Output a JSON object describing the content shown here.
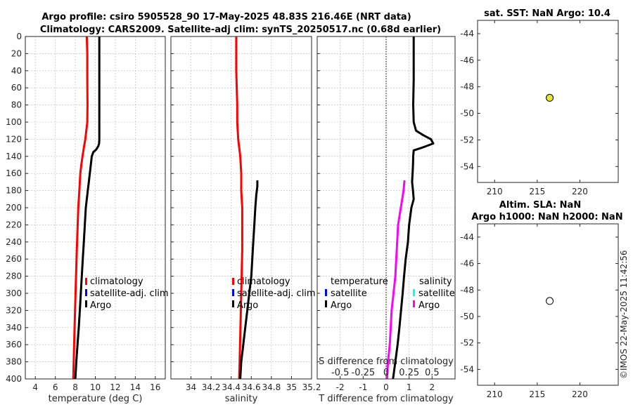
{
  "title_line1": "Argo profile: csiro 5905528_90 17-May-2025 48.83S 216.46E (NRT data)",
  "title_line2": "Climatology: CARS2009. Satellite-adj clim: synTS_20250517.nc (0.68d earlier)",
  "copyright": "©IMOS 22-May-2025 11:42:56",
  "colors": {
    "climatology": "#ff0000",
    "satellite": "#0000ff",
    "argo": "#000000",
    "sat_salinity": "#00ffff",
    "argo_diff": "#ff00ff",
    "sst_marker": "#e6e62e"
  },
  "depth_ticks": [
    0,
    20,
    40,
    60,
    80,
    100,
    120,
    140,
    160,
    180,
    200,
    220,
    240,
    260,
    280,
    300,
    320,
    340,
    360,
    380,
    400
  ],
  "chart_data": [
    {
      "id": "temperature",
      "type": "line",
      "xlabel": "temperature (deg C)",
      "xlim": [
        3,
        17
      ],
      "ylim": [
        0,
        400
      ],
      "xticks": [
        4,
        6,
        8,
        10,
        12,
        14,
        16
      ],
      "xtick_labels": [
        "4",
        "6",
        "8",
        "10",
        "12",
        "14",
        "16"
      ],
      "legend": [
        "climatology",
        "satellite-adj. clim",
        "Argo"
      ],
      "series": [
        {
          "name": "climatology",
          "color": "#ff0000",
          "depth": [
            0,
            20,
            50,
            80,
            100,
            110,
            120,
            130,
            140,
            150,
            160,
            180,
            200,
            250,
            300,
            350,
            400
          ],
          "values": [
            9.15,
            9.2,
            9.2,
            9.22,
            9.2,
            9.1,
            9.0,
            8.85,
            8.72,
            8.6,
            8.5,
            8.4,
            8.3,
            8.15,
            8.02,
            7.9,
            7.8
          ]
        },
        {
          "name": "Argo",
          "color": "#000000",
          "depth": [
            0,
            20,
            50,
            80,
            100,
            120,
            125,
            128,
            132,
            135,
            140,
            150,
            160,
            170,
            180,
            190,
            200,
            220,
            240,
            260,
            280,
            300,
            320,
            340,
            360,
            380,
            400
          ],
          "values": [
            10.4,
            10.4,
            10.4,
            10.4,
            10.4,
            10.4,
            10.38,
            10.3,
            10.1,
            9.8,
            9.65,
            9.55,
            9.45,
            9.35,
            9.25,
            9.15,
            9.05,
            8.95,
            8.85,
            8.75,
            8.65,
            8.55,
            8.45,
            8.35,
            8.22,
            8.1,
            8.0
          ]
        }
      ]
    },
    {
      "id": "salinity",
      "type": "line",
      "xlabel": "salinity",
      "xlim": [
        33.8,
        35.2
      ],
      "ylim": [
        0,
        400
      ],
      "xticks": [
        34,
        34.2,
        34.4,
        34.6,
        34.8,
        35,
        35.2
      ],
      "xtick_labels": [
        "34",
        "34.2",
        "34.4",
        "34.6",
        "34.8",
        "35",
        "35.2"
      ],
      "legend": [
        "climatology",
        "satellite-adj. clim",
        "Argo"
      ],
      "series": [
        {
          "name": "climatology",
          "color": "#ff0000",
          "depth": [
            0,
            40,
            80,
            100,
            120,
            140,
            160,
            180,
            200,
            250,
            300,
            350,
            400
          ],
          "values": [
            34.45,
            34.45,
            34.46,
            34.46,
            34.47,
            34.49,
            34.5,
            34.5,
            34.51,
            34.51,
            34.5,
            34.49,
            34.48
          ]
        },
        {
          "name": "Argo",
          "color": "#000000",
          "depth": [
            168,
            175,
            185,
            200,
            220,
            240,
            260,
            280,
            300,
            320,
            340,
            360,
            380,
            400
          ],
          "values": [
            34.66,
            34.66,
            34.65,
            34.64,
            34.63,
            34.62,
            34.61,
            34.6,
            34.58,
            34.56,
            34.54,
            34.52,
            34.5,
            34.49
          ]
        }
      ]
    },
    {
      "id": "difference",
      "type": "line",
      "xlabel": "T difference from climatology",
      "top_label": "S difference from climatology",
      "xlim": [
        -3,
        3
      ],
      "ylim": [
        0,
        400
      ],
      "xticks": [
        -2,
        -1,
        0,
        1,
        2
      ],
      "xtick_labels": [
        "-2",
        "-1",
        "0",
        "1",
        "2"
      ],
      "top_ticks": [
        -0.5,
        -0.25,
        0,
        0.25,
        0.5
      ],
      "top_tick_labels": [
        "-0.5",
        "-0.25",
        "0",
        "0.25",
        "0.5"
      ],
      "legend_left_title": "temperature",
      "legend_right_title": "salinity",
      "legend_left": [
        "satellite",
        "Argo"
      ],
      "legend_right": [
        "satellite",
        "Argo"
      ],
      "series": [
        {
          "name": "Argo T diff",
          "color": "#000000",
          "depth": [
            0,
            20,
            50,
            80,
            100,
            110,
            115,
            120,
            125,
            130,
            133,
            140,
            150,
            160,
            170,
            180,
            190,
            200,
            220,
            240,
            260,
            280,
            300,
            320,
            340,
            360,
            380,
            400
          ],
          "values": [
            1.2,
            1.2,
            1.2,
            1.18,
            1.2,
            1.3,
            1.6,
            1.95,
            2.05,
            1.55,
            1.2,
            1.18,
            1.17,
            1.15,
            1.13,
            1.17,
            1.2,
            1.1,
            1.0,
            0.95,
            0.85,
            0.78,
            0.72,
            0.65,
            0.58,
            0.5,
            0.4,
            0.3
          ]
        },
        {
          "name": "Argo S diff",
          "color": "#ff00ff",
          "depth": [
            168,
            180,
            200,
            220,
            240,
            260,
            280,
            300,
            320,
            340,
            360,
            380,
            400
          ],
          "values": [
            0.2,
            0.19,
            0.16,
            0.13,
            0.12,
            0.11,
            0.1,
            0.08,
            0.06,
            0.05,
            0.04,
            0.02,
            0.01
          ]
        }
      ]
    },
    {
      "id": "sst_map",
      "type": "scatter",
      "title": "sat. SST: NaN Argo: 10.4",
      "xlim": [
        208,
        224.5
      ],
      "ylim": [
        -55.2,
        -43
      ],
      "xticks": [
        210,
        215,
        220
      ],
      "yticks": [
        -44,
        -46,
        -48,
        -50,
        -52,
        -54
      ],
      "points": [
        {
          "x": 216.46,
          "y": -48.83,
          "fill": "#e6e62e"
        }
      ]
    },
    {
      "id": "sla_map",
      "type": "scatter",
      "title_line1": "Altim. SLA: NaN",
      "title_line2": "Argo h1000: NaN h2000: NaN",
      "xlim": [
        208,
        224.5
      ],
      "ylim": [
        -55.2,
        -43
      ],
      "xticks": [
        210,
        215,
        220
      ],
      "yticks": [
        -44,
        -46,
        -48,
        -50,
        -52,
        -54
      ],
      "points": [
        {
          "x": 216.46,
          "y": -48.83,
          "fill": "#ffffff"
        }
      ]
    }
  ]
}
